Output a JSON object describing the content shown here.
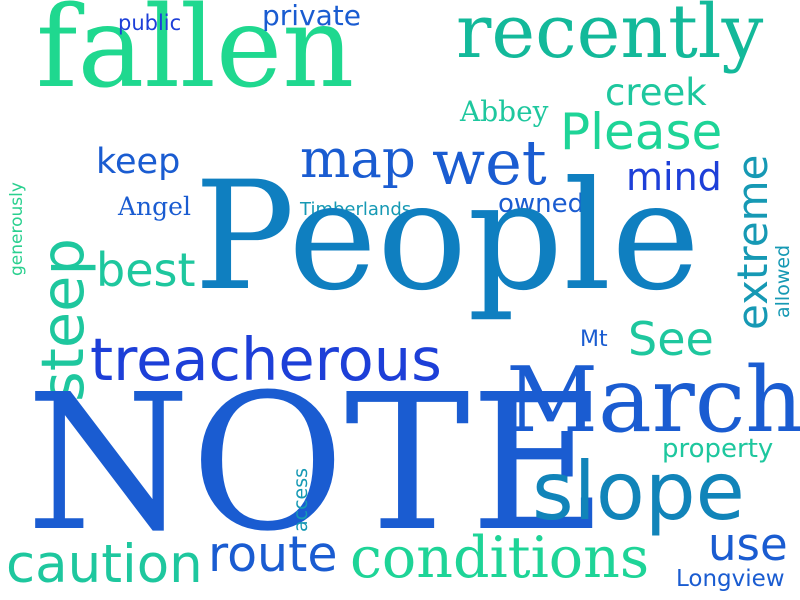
{
  "palette": {
    "teal_light": "#1fd88f",
    "teal": "#13b99a",
    "cyan": "#1699b4",
    "steel": "#0f7fc0",
    "blue": "#1a5cd1",
    "royal": "#1d3fd8"
  },
  "words": [
    {
      "id": "fallen",
      "text": "fallen",
      "color": "#1fd88f"
    },
    {
      "id": "recently",
      "text": "recently",
      "color": "#13b99a"
    },
    {
      "id": "public",
      "text": "public",
      "color": "#1d3fd8"
    },
    {
      "id": "private",
      "text": "private",
      "color": "#1a5cd1"
    },
    {
      "id": "abbey",
      "text": "Abbey",
      "color": "#1ec79e"
    },
    {
      "id": "creek",
      "text": "creek",
      "color": "#1ec79e"
    },
    {
      "id": "please",
      "text": "Please",
      "color": "#1ed497"
    },
    {
      "id": "keep",
      "text": "keep",
      "color": "#1a5cd1"
    },
    {
      "id": "map",
      "text": "map",
      "color": "#1a5cd1"
    },
    {
      "id": "wet",
      "text": "wet",
      "color": "#1a5cd1"
    },
    {
      "id": "mind",
      "text": "mind",
      "color": "#1d3fd8"
    },
    {
      "id": "extreme",
      "text": "extreme",
      "color": "#1699b4"
    },
    {
      "id": "generously",
      "text": "generously",
      "color": "#2ad08f"
    },
    {
      "id": "angel",
      "text": "Angel",
      "color": "#1a5cd1"
    },
    {
      "id": "timberlands",
      "text": "Timberlands",
      "color": "#1699b4"
    },
    {
      "id": "owned",
      "text": "owned",
      "color": "#1a5cd1"
    },
    {
      "id": "people",
      "text": "People",
      "color": "#0f7fc0"
    },
    {
      "id": "best",
      "text": "best",
      "color": "#1ec79e"
    },
    {
      "id": "steep",
      "text": "steep",
      "color": "#1ec79e"
    },
    {
      "id": "allowed",
      "text": "allowed",
      "color": "#1699b4"
    },
    {
      "id": "mt",
      "text": "Mt",
      "color": "#1a5cd1"
    },
    {
      "id": "see",
      "text": "See",
      "color": "#1ec79e"
    },
    {
      "id": "treacherous",
      "text": "treacherous",
      "color": "#1d3fd8"
    },
    {
      "id": "march",
      "text": "March",
      "color": "#1a5cd1"
    },
    {
      "id": "note",
      "text": "NOTE",
      "color": "#1a5cd1"
    },
    {
      "id": "property",
      "text": "property",
      "color": "#1ec79e"
    },
    {
      "id": "access",
      "text": "access",
      "color": "#1699b4"
    },
    {
      "id": "slope",
      "text": "slope",
      "color": "#1184b9"
    },
    {
      "id": "caution",
      "text": "caution",
      "color": "#1ec79e"
    },
    {
      "id": "route",
      "text": "route",
      "color": "#1a5cd1"
    },
    {
      "id": "conditions",
      "text": "conditions",
      "color": "#1ed497"
    },
    {
      "id": "use",
      "text": "use",
      "color": "#1a5cd1"
    },
    {
      "id": "longview",
      "text": "Longview",
      "color": "#1a5cd1"
    }
  ]
}
